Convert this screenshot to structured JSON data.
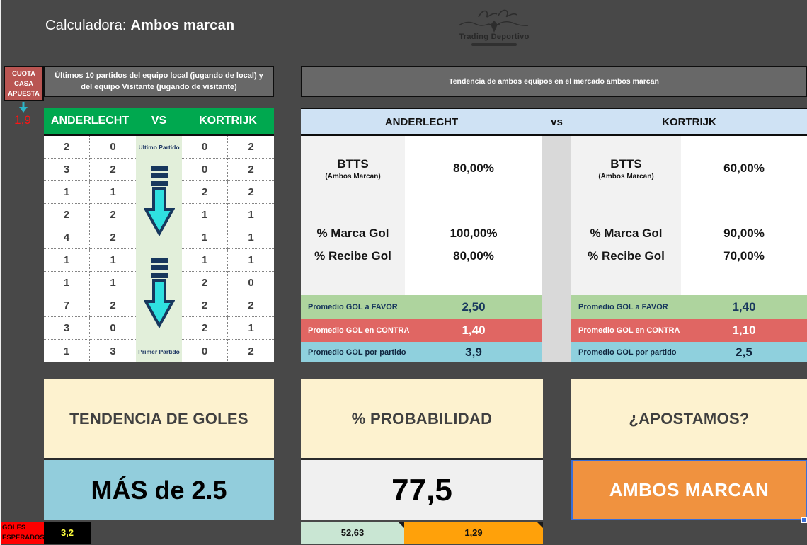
{
  "header": {
    "title_prefix": "Calculadora: ",
    "title_bold": "Ambos marcan",
    "logo_name": "Trading Deportivo"
  },
  "left_panel": {
    "cuota_lines": [
      "CUOTA",
      "CASA",
      "APUESTA"
    ],
    "cuota_value": "1,9",
    "history_title": "Últimos 10 partidos del equipo local (jugando de local) y del equipo Visitante (jugando de visitante)",
    "home_team": "ANDERLECHT",
    "vs_label": "VS",
    "away_team": "KORTRIJK",
    "ultimo_partido": "Ultimo Partido",
    "primer_partido": "Primer Partido",
    "home_scores": [
      [
        "2",
        "0"
      ],
      [
        "3",
        "2"
      ],
      [
        "1",
        "1"
      ],
      [
        "2",
        "2"
      ],
      [
        "4",
        "2"
      ],
      [
        "1",
        "1"
      ],
      [
        "1",
        "1"
      ],
      [
        "7",
        "2"
      ],
      [
        "3",
        "0"
      ],
      [
        "1",
        "3"
      ]
    ],
    "away_scores": [
      [
        "0",
        "2"
      ],
      [
        "0",
        "2"
      ],
      [
        "2",
        "2"
      ],
      [
        "1",
        "1"
      ],
      [
        "1",
        "1"
      ],
      [
        "1",
        "1"
      ],
      [
        "2",
        "0"
      ],
      [
        "2",
        "2"
      ],
      [
        "2",
        "1"
      ],
      [
        "0",
        "2"
      ]
    ]
  },
  "trend_panel": {
    "title": "Tendencia de ambos equipos en el mercado ambos marcan",
    "home_team": "ANDERLECHT",
    "vs_label": "vs",
    "away_team": "KORTRIJK",
    "home": {
      "btts_label": "BTTS",
      "btts_sub": "(Ambos Marcan)",
      "btts_value": "80,00%",
      "marca_label": "% Marca Gol",
      "marca_value": "100,00%",
      "recibe_label": "% Recibe Gol",
      "recibe_value": "80,00%",
      "favor_label": "Promedio GOL a FAVOR",
      "favor_value": "2,50",
      "contra_label": "Promedio GOL en CONTRA",
      "contra_value": "1,40",
      "partido_label": "Promedio GOL por partido",
      "partido_value": "3,9"
    },
    "away": {
      "btts_label": "BTTS",
      "btts_sub": "(Ambos Marcan)",
      "btts_value": "60,00%",
      "marca_label": "% Marca Gol",
      "marca_value": "90,00%",
      "recibe_label": "% Recibe Gol",
      "recibe_value": "70,00%",
      "favor_label": "Promedio GOL a FAVOR",
      "favor_value": "1,40",
      "contra_label": "Promedio GOL en CONTRA",
      "contra_value": "1,10",
      "partido_label": "Promedio GOL por partido",
      "partido_value": "2,5"
    }
  },
  "summary": {
    "tendencia_title": "TENDENCIA DE GOLES",
    "tendencia_value": "MÁS de 2.5",
    "probabilidad_title": "% PROBABILIDAD",
    "probabilidad_value": "77,5",
    "break_even": "52,63",
    "cuota_minima": "1,29",
    "apostamos_title": "¿APOSTAMOS?",
    "apostamos_value": "AMBOS MARCAN",
    "goles_esperados_lines": [
      "GOLES",
      "ESPERADOS"
    ],
    "goles_esperados_value": "3,2"
  },
  "colors": {
    "background": "#484848",
    "green_header": "#00a84f",
    "light_green_col": "#e2efda",
    "arrow_cyan": "#2fe0e0",
    "navy": "#17375d",
    "vs_band_blue": "#cfe2f4",
    "prom_green": "#aed49e",
    "prom_red": "#e06663",
    "prom_blue": "#8fd0dd",
    "cream": "#fdf2cf",
    "result_blue": "#92cddc",
    "result_orange": "#f0923f",
    "strip_mint": "#c9e6d3",
    "strip_orange": "#ffa10a",
    "cuota_red": "#b95552",
    "alert_red": "#fe0000",
    "value_yellow": "#ffff3d"
  }
}
